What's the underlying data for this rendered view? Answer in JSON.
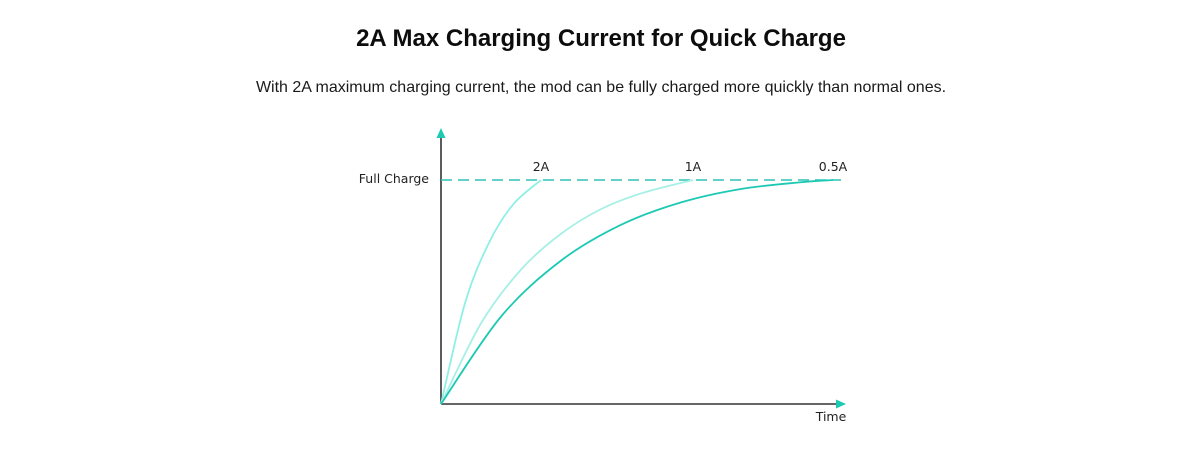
{
  "header": {
    "title": "2A Max Charging Current for Quick Charge",
    "subtitle": "With 2A maximum charging current, the mod can be fully charged more quickly than normal ones."
  },
  "chart_data": {
    "type": "line",
    "title": "",
    "xlabel": "Time",
    "ylabel": "",
    "y_reference": {
      "label": "Full Charge",
      "value": 1.0,
      "style": "dashed",
      "color": "#2ec4b6"
    },
    "xlim": [
      0,
      1
    ],
    "ylim": [
      0,
      1
    ],
    "grid": false,
    "series": [
      {
        "name": "2A",
        "color": "#8ef0e4",
        "x": [
          0,
          0.06,
          0.12,
          0.18,
          0.25
        ],
        "y": [
          0,
          0.45,
          0.72,
          0.89,
          1.0
        ]
      },
      {
        "name": "1A",
        "color": "#a6f0e6",
        "x": [
          0,
          0.1,
          0.2,
          0.3,
          0.4,
          0.5,
          0.63
        ],
        "y": [
          0,
          0.36,
          0.6,
          0.76,
          0.87,
          0.94,
          1.0
        ]
      },
      {
        "name": "0.5A",
        "color": "#1cc9b3",
        "x": [
          0,
          0.15,
          0.3,
          0.45,
          0.6,
          0.75,
          0.9,
          0.98
        ],
        "y": [
          0,
          0.39,
          0.64,
          0.8,
          0.9,
          0.96,
          0.99,
          1.0
        ]
      }
    ]
  }
}
